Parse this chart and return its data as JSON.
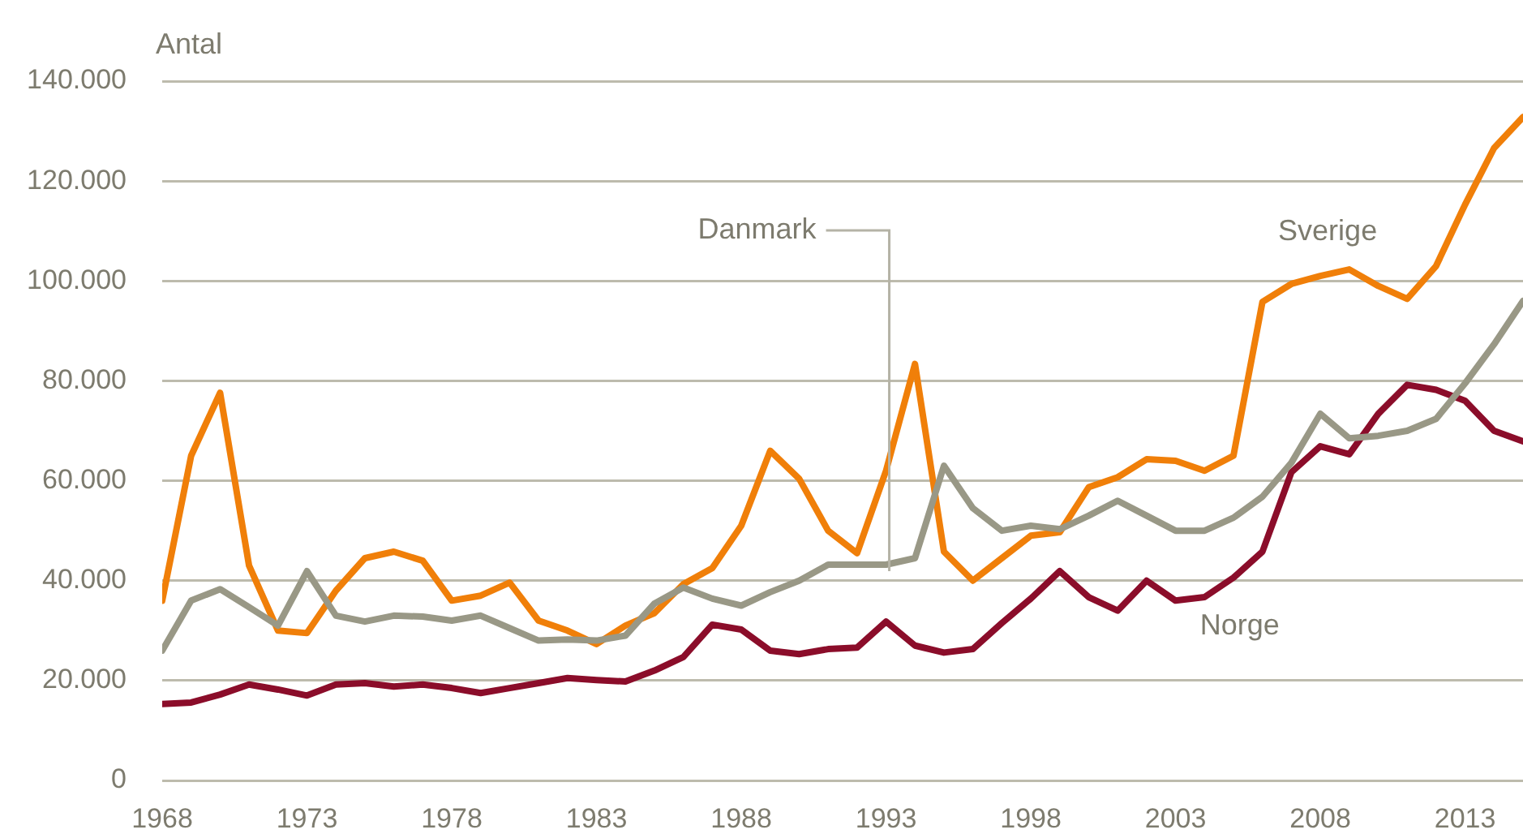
{
  "chart_data": {
    "type": "line",
    "ylabel": "Antal",
    "x": [
      1968,
      1969,
      1970,
      1971,
      1972,
      1973,
      1974,
      1975,
      1976,
      1977,
      1978,
      1979,
      1980,
      1981,
      1982,
      1983,
      1984,
      1985,
      1986,
      1987,
      1988,
      1989,
      1990,
      1991,
      1992,
      1993,
      1994,
      1995,
      1996,
      1997,
      1998,
      1999,
      2000,
      2001,
      2002,
      2003,
      2004,
      2005,
      2006,
      2007,
      2008,
      2009,
      2010,
      2011,
      2012,
      2013,
      2014,
      2015
    ],
    "series": [
      {
        "name": "Danmark",
        "color": "#999886",
        "values": [
          26000,
          36000,
          38300,
          34700,
          31000,
          41900,
          33000,
          31800,
          33000,
          32800,
          32000,
          33000,
          30500,
          28000,
          28200,
          28000,
          29000,
          35400,
          38600,
          36400,
          35000,
          37700,
          40000,
          43200,
          43200,
          43200,
          44500,
          63000,
          54500,
          50000,
          51000,
          50300,
          53000,
          56000,
          53000,
          50000,
          50000,
          52600,
          56800,
          63600,
          73400,
          68500,
          69000,
          70000,
          72400,
          79500,
          87300,
          96000
        ]
      },
      {
        "name": "Sverige",
        "color": "#f07f09",
        "values": [
          36000,
          65000,
          77600,
          43000,
          30000,
          29500,
          38000,
          44500,
          45800,
          44000,
          36000,
          37000,
          39600,
          32000,
          30000,
          27300,
          31000,
          33500,
          39300,
          42500,
          51000,
          66000,
          60400,
          50000,
          45500,
          62000,
          83400,
          45800,
          40000,
          44500,
          49000,
          49700,
          58700,
          60700,
          64300,
          64000,
          62000,
          65000,
          95800,
          99400,
          101000,
          102300,
          99000,
          96400,
          103000,
          115300,
          126600,
          132800
        ]
      },
      {
        "name": "Norge",
        "color": "#8b0d2a",
        "values": [
          15300,
          15600,
          17200,
          19200,
          18200,
          17000,
          19200,
          19500,
          18800,
          19200,
          18500,
          17500,
          18500,
          19500,
          20500,
          20100,
          19800,
          22000,
          24700,
          31200,
          30200,
          26000,
          25300,
          26300,
          26600,
          31800,
          27000,
          25600,
          26300,
          31500,
          36400,
          41900,
          36700,
          34000,
          40000,
          36000,
          36700,
          40600,
          45800,
          61700,
          66900,
          65300,
          73400,
          79200,
          78200,
          76000,
          70000,
          67900
        ]
      }
    ],
    "xlim": [
      1968,
      2015
    ],
    "xticks": [
      1968,
      1973,
      1978,
      1983,
      1988,
      1993,
      1998,
      2003,
      2008,
      2013
    ],
    "ylim": [
      0,
      140000
    ],
    "yticks": [
      {
        "value": 0,
        "label": "0"
      },
      {
        "value": 20000,
        "label": "20.000"
      },
      {
        "value": 40000,
        "label": "40.000"
      },
      {
        "value": 60000,
        "label": "60.000"
      },
      {
        "value": 80000,
        "label": "80.000"
      },
      {
        "value": 100000,
        "label": "100.000"
      },
      {
        "value": 120000,
        "label": "120.000"
      },
      {
        "value": 140000,
        "label": "140.000"
      }
    ],
    "grid": "y",
    "legend": false,
    "marker": "none",
    "line_style": "solid"
  }
}
